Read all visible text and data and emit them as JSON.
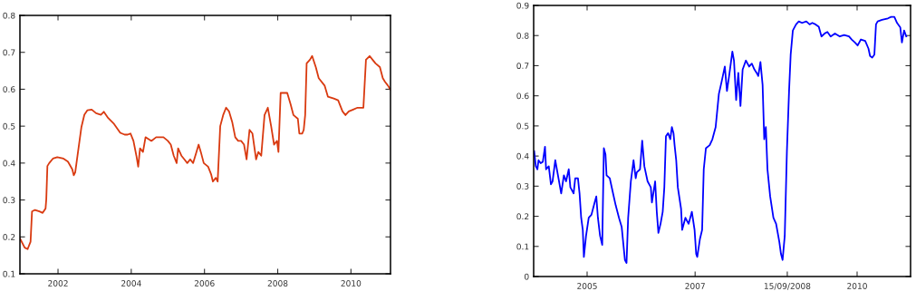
{
  "chart_data": [
    {
      "type": "line",
      "xlim": [
        2000.96,
        2011.08
      ],
      "xticks": [
        2002,
        2004,
        2006,
        2008,
        2010
      ],
      "ylim": [
        0.1,
        0.8
      ],
      "yticks": [
        0.1,
        0.2,
        0.3,
        0.4,
        0.5,
        0.6,
        0.7,
        0.8
      ],
      "series": [
        {
          "color": "#d93a10",
          "x": [
            2000.96,
            2001.09,
            2001.17,
            2001.25,
            2001.29,
            2001.37,
            2001.49,
            2001.58,
            2001.66,
            2001.68,
            2001.71,
            2001.76,
            2001.86,
            2001.98,
            2002.15,
            2002.27,
            2002.39,
            2002.43,
            2002.47,
            2002.55,
            2002.64,
            2002.72,
            2002.8,
            2002.92,
            2003.04,
            2003.17,
            2003.25,
            2003.37,
            2003.53,
            2003.7,
            2003.82,
            2003.9,
            2003.98,
            2004.06,
            2004.14,
            2004.19,
            2004.24,
            2004.32,
            2004.39,
            2004.55,
            2004.68,
            2004.88,
            2005.0,
            2005.08,
            2005.16,
            2005.24,
            2005.28,
            2005.37,
            2005.45,
            2005.53,
            2005.61,
            2005.69,
            2005.78,
            2005.84,
            2005.9,
            2005.98,
            2006.1,
            2006.18,
            2006.23,
            2006.31,
            2006.36,
            2006.43,
            2006.51,
            2006.59,
            2006.67,
            2006.76,
            2006.84,
            2006.92,
            2007.0,
            2007.08,
            2007.15,
            2007.23,
            2007.31,
            2007.41,
            2007.47,
            2007.55,
            2007.64,
            2007.73,
            2007.82,
            2007.9,
            2007.98,
            2008.02,
            2008.08,
            2008.14,
            2008.26,
            2008.35,
            2008.43,
            2008.55,
            2008.59,
            2008.67,
            2008.71,
            2008.75,
            2008.79,
            2008.88,
            2008.94,
            2009.04,
            2009.12,
            2009.28,
            2009.37,
            2009.53,
            2009.65,
            2009.77,
            2009.85,
            2009.94,
            2010.06,
            2010.18,
            2010.34,
            2010.41,
            2010.51,
            2010.59,
            2010.67,
            2010.79,
            2010.87,
            2010.93,
            2011.01,
            2011.07
          ],
          "values": [
            0.196,
            0.171,
            0.167,
            0.187,
            0.269,
            0.273,
            0.269,
            0.265,
            0.277,
            0.302,
            0.392,
            0.4,
            0.412,
            0.416,
            0.412,
            0.404,
            0.383,
            0.367,
            0.375,
            0.433,
            0.498,
            0.531,
            0.543,
            0.545,
            0.535,
            0.531,
            0.539,
            0.522,
            0.506,
            0.482,
            0.477,
            0.477,
            0.48,
            0.46,
            0.42,
            0.39,
            0.44,
            0.43,
            0.47,
            0.46,
            0.47,
            0.47,
            0.46,
            0.45,
            0.42,
            0.4,
            0.44,
            0.42,
            0.41,
            0.4,
            0.41,
            0.4,
            0.43,
            0.45,
            0.43,
            0.4,
            0.39,
            0.37,
            0.35,
            0.36,
            0.35,
            0.5,
            0.53,
            0.55,
            0.54,
            0.51,
            0.47,
            0.46,
            0.46,
            0.45,
            0.41,
            0.49,
            0.48,
            0.41,
            0.43,
            0.42,
            0.53,
            0.55,
            0.5,
            0.45,
            0.46,
            0.43,
            0.59,
            0.59,
            0.59,
            0.56,
            0.53,
            0.52,
            0.48,
            0.48,
            0.49,
            0.53,
            0.67,
            0.68,
            0.69,
            0.66,
            0.63,
            0.61,
            0.58,
            0.575,
            0.57,
            0.54,
            0.53,
            0.54,
            0.545,
            0.55,
            0.55,
            0.68,
            0.69,
            0.68,
            0.67,
            0.66,
            0.63,
            0.62,
            0.61,
            0.6
          ]
        }
      ]
    },
    {
      "type": "line",
      "xlim": [
        2004.01,
        2010.99
      ],
      "xticks": [
        2005,
        2007,
        {
          "value": 2008.707,
          "label": "15/09/2008"
        },
        2010
      ],
      "ylim": [
        0,
        0.9
      ],
      "yticks": [
        0,
        0.1,
        0.2,
        0.3,
        0.4,
        0.5,
        0.6,
        0.7,
        0.8,
        0.9
      ],
      "series": [
        {
          "color": "#0000ff",
          "x": [
            2004.02,
            2004.05,
            2004.08,
            2004.1,
            2004.14,
            2004.18,
            2004.22,
            2004.24,
            2004.29,
            2004.33,
            2004.36,
            2004.41,
            2004.47,
            2004.52,
            2004.57,
            2004.61,
            2004.66,
            2004.69,
            2004.75,
            2004.78,
            2004.83,
            2004.86,
            2004.89,
            2004.92,
            2004.94,
            2004.98,
            2005.03,
            2005.08,
            2005.14,
            2005.17,
            2005.2,
            2005.24,
            2005.28,
            2005.31,
            2005.34,
            2005.36,
            2005.42,
            2005.48,
            2005.53,
            2005.59,
            2005.64,
            2005.7,
            2005.73,
            2005.76,
            2005.81,
            2005.86,
            2005.9,
            2005.92,
            2005.98,
            2006.02,
            2006.06,
            2006.12,
            2006.18,
            2006.2,
            2006.26,
            2006.29,
            2006.32,
            2006.36,
            2006.4,
            2006.43,
            2006.46,
            2006.5,
            2006.54,
            2006.57,
            2006.6,
            2006.62,
            2006.65,
            2006.68,
            2006.74,
            2006.76,
            2006.82,
            2006.88,
            2006.94,
            2006.99,
            2007.02,
            2007.04,
            2007.09,
            2007.13,
            2007.16,
            2007.2,
            2007.27,
            2007.32,
            2007.38,
            2007.44,
            2007.49,
            2007.55,
            2007.59,
            2007.63,
            2007.69,
            2007.72,
            2007.76,
            2007.8,
            2007.84,
            2007.88,
            2007.94,
            2008.0,
            2008.05,
            2008.1,
            2008.14,
            2008.17,
            2008.21,
            2008.25,
            2008.28,
            2008.31,
            2008.34,
            2008.39,
            2008.45,
            2008.5,
            2008.56,
            2008.59,
            2008.62,
            2008.66,
            2008.7,
            2008.74,
            2008.77,
            2008.81,
            2008.87,
            2008.92,
            2008.98,
            2009.06,
            2009.12,
            2009.17,
            2009.23,
            2009.29,
            2009.34,
            2009.4,
            2009.45,
            2009.51,
            2009.59,
            2009.68,
            2009.76,
            2009.85,
            2009.9,
            2009.96,
            2010.01,
            2010.07,
            2010.15,
            2010.21,
            2010.24,
            2010.28,
            2010.32,
            2010.35,
            2010.38,
            2010.46,
            2010.57,
            2010.63,
            2010.69,
            2010.74,
            2010.8,
            2010.83,
            2010.87,
            2010.91
          ],
          "values": [
            0.416,
            0.366,
            0.356,
            0.386,
            0.376,
            0.381,
            0.431,
            0.356,
            0.366,
            0.306,
            0.316,
            0.386,
            0.326,
            0.276,
            0.336,
            0.316,
            0.356,
            0.296,
            0.276,
            0.326,
            0.326,
            0.276,
            0.195,
            0.155,
            0.065,
            0.135,
            0.195,
            0.205,
            0.246,
            0.266,
            0.195,
            0.135,
            0.105,
            0.426,
            0.406,
            0.336,
            0.326,
            0.276,
            0.236,
            0.195,
            0.165,
            0.055,
            0.045,
            0.195,
            0.316,
            0.386,
            0.326,
            0.346,
            0.356,
            0.451,
            0.366,
            0.316,
            0.296,
            0.246,
            0.316,
            0.215,
            0.145,
            0.175,
            0.215,
            0.296,
            0.466,
            0.476,
            0.456,
            0.496,
            0.476,
            0.436,
            0.386,
            0.296,
            0.225,
            0.155,
            0.195,
            0.175,
            0.215,
            0.155,
            0.075,
            0.065,
            0.125,
            0.155,
            0.356,
            0.426,
            0.436,
            0.456,
            0.496,
            0.606,
            0.646,
            0.697,
            0.616,
            0.666,
            0.747,
            0.717,
            0.586,
            0.676,
            0.566,
            0.687,
            0.717,
            0.697,
            0.707,
            0.687,
            0.676,
            0.666,
            0.712,
            0.636,
            0.456,
            0.496,
            0.356,
            0.266,
            0.195,
            0.175,
            0.115,
            0.075,
            0.055,
            0.135,
            0.416,
            0.616,
            0.737,
            0.817,
            0.837,
            0.847,
            0.842,
            0.847,
            0.837,
            0.842,
            0.837,
            0.829,
            0.797,
            0.807,
            0.812,
            0.797,
            0.807,
            0.797,
            0.802,
            0.797,
            0.787,
            0.777,
            0.767,
            0.787,
            0.782,
            0.757,
            0.732,
            0.727,
            0.737,
            0.837,
            0.847,
            0.852,
            0.857,
            0.862,
            0.862,
            0.842,
            0.827,
            0.777,
            0.817,
            0.797
          ]
        }
      ]
    }
  ]
}
